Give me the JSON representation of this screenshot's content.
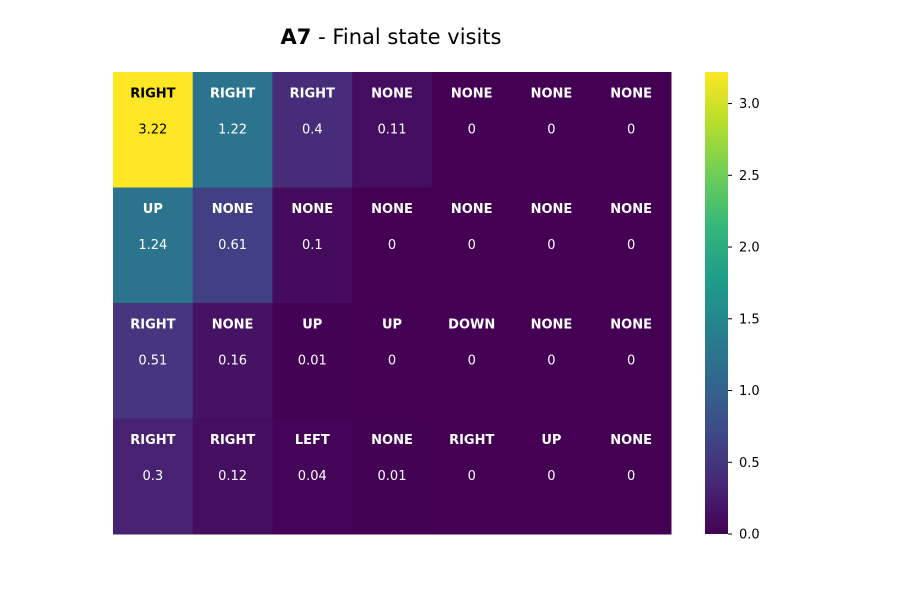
{
  "title": {
    "bold": "A7",
    "rest": " - Final state visits"
  },
  "chart_data": {
    "type": "heatmap",
    "title": "A7 - Final state visits",
    "rows": 4,
    "cols": 7,
    "actions": [
      [
        "RIGHT",
        "RIGHT",
        "RIGHT",
        "NONE",
        "NONE",
        "NONE",
        "NONE"
      ],
      [
        "UP",
        "NONE",
        "NONE",
        "NONE",
        "NONE",
        "NONE",
        "NONE"
      ],
      [
        "RIGHT",
        "NONE",
        "UP",
        "UP",
        "DOWN",
        "NONE",
        "NONE"
      ],
      [
        "RIGHT",
        "RIGHT",
        "LEFT",
        "NONE",
        "RIGHT",
        "UP",
        "NONE"
      ]
    ],
    "values": [
      [
        3.22,
        1.22,
        0.4,
        0.11,
        0,
        0,
        0
      ],
      [
        1.24,
        0.61,
        0.1,
        0,
        0,
        0,
        0
      ],
      [
        0.51,
        0.16,
        0.01,
        0,
        0,
        0,
        0
      ],
      [
        0.3,
        0.12,
        0.04,
        0.01,
        0,
        0,
        0
      ]
    ],
    "colormap": "viridis",
    "colorbar": {
      "range": [
        0,
        3.22
      ],
      "ticks": [
        0.0,
        0.5,
        1.0,
        1.5,
        2.0,
        2.5,
        3.0
      ],
      "tick_labels": [
        "0.0",
        "0.5",
        "1.0",
        "1.5",
        "2.0",
        "2.5",
        "3.0"
      ]
    },
    "axes_visible": false
  }
}
